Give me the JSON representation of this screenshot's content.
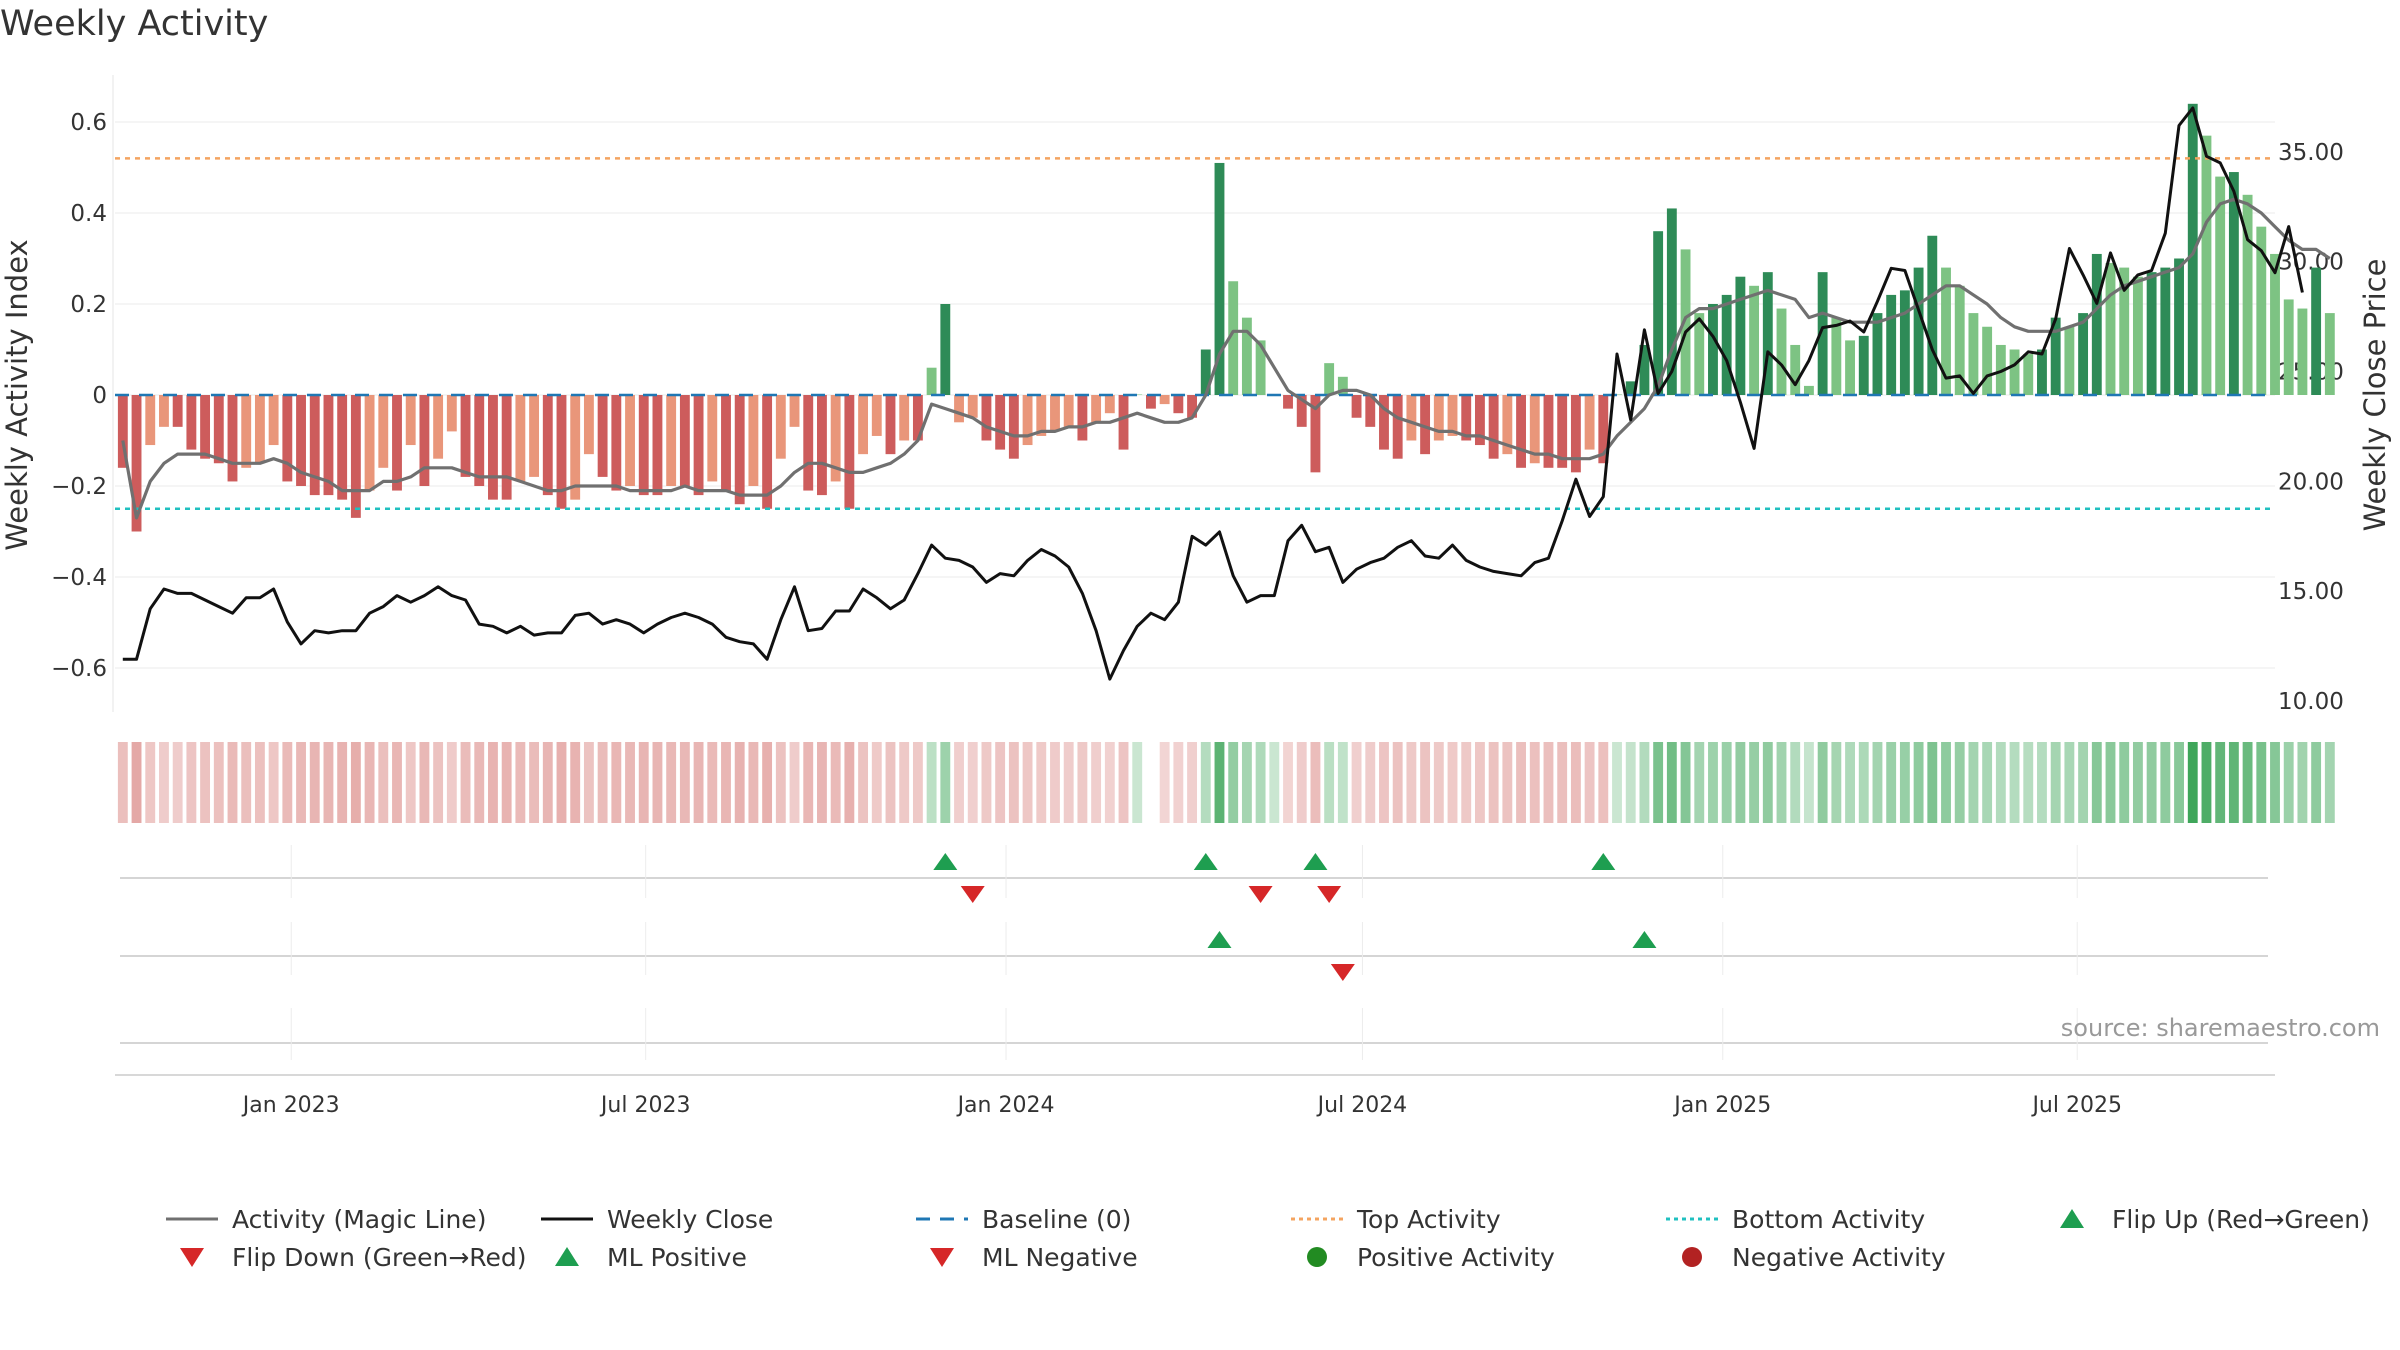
{
  "title": "Weekly Activity",
  "source": "source: sharemaestro.com",
  "colors": {
    "pos_dark": "#2e8b57",
    "pos_light": "#7dc383",
    "neg_dark": "#cd5c5c",
    "neg_light": "#e9967a",
    "magic_line": "#707070",
    "close_line": "#111111",
    "baseline": "#1f77b4",
    "top_line": "#f4a460",
    "bottom_line": "#20c0c0",
    "up_marker": "#1e9e50",
    "down_marker": "#d62728",
    "pos_dot": "#228b22",
    "neg_dot": "#b22222",
    "strip_green": "#3fa65a",
    "strip_red": "#d4736f"
  },
  "chart_data": {
    "type": "bar+line",
    "title": "Weekly Activity",
    "ylabel_left": "Weekly Activity Index",
    "ylabel_right": "Weekly Close Price",
    "y_left_ticks": [
      0.6,
      0.4,
      0.2,
      0,
      -0.2,
      -0.4,
      -0.6
    ],
    "y_left_tick_labels": [
      "0.6",
      "0.4",
      "0.2",
      "0",
      "−0.2",
      "−0.4",
      "−0.6"
    ],
    "y_left_range": [
      -0.7,
      0.7
    ],
    "y_right_ticks": [
      "35.00",
      "30.00",
      "25.00",
      "20.00",
      "15.00",
      "10.00"
    ],
    "y_right_range": [
      9.5,
      38.5
    ],
    "x_range": [
      "2022-10-03",
      "2025-10-10"
    ],
    "x_ticks": [
      {
        "label": "Jan 2023",
        "date": "2023-01-01"
      },
      {
        "label": "Jul 2023",
        "date": "2023-07-01"
      },
      {
        "label": "Jan 2024",
        "date": "2024-01-01"
      },
      {
        "label": "Jul 2024",
        "date": "2024-07-01"
      },
      {
        "label": "Jan 2025",
        "date": "2025-01-01"
      },
      {
        "label": "Jul 2025",
        "date": "2025-07-01"
      }
    ],
    "start_week": "2022-10-07",
    "top_activity": 0.52,
    "bottom_activity": -0.25,
    "activity": [
      -0.16,
      -0.3,
      -0.11,
      -0.07,
      -0.07,
      -0.12,
      -0.14,
      -0.15,
      -0.19,
      -0.16,
      -0.15,
      -0.11,
      -0.19,
      -0.2,
      -0.22,
      -0.22,
      -0.23,
      -0.27,
      -0.21,
      -0.16,
      -0.21,
      -0.11,
      -0.2,
      -0.14,
      -0.08,
      -0.18,
      -0.2,
      -0.23,
      -0.23,
      -0.19,
      -0.18,
      -0.22,
      -0.25,
      -0.23,
      -0.13,
      -0.18,
      -0.21,
      -0.2,
      -0.22,
      -0.22,
      -0.2,
      -0.2,
      -0.22,
      -0.19,
      -0.21,
      -0.24,
      -0.2,
      -0.25,
      -0.14,
      -0.07,
      -0.21,
      -0.22,
      -0.19,
      -0.25,
      -0.13,
      -0.09,
      -0.13,
      -0.1,
      -0.1,
      0.06,
      0.2,
      -0.06,
      -0.05,
      -0.1,
      -0.12,
      -0.14,
      -0.11,
      -0.09,
      -0.08,
      -0.07,
      -0.1,
      -0.06,
      -0.04,
      -0.12,
      0.0,
      -0.03,
      -0.02,
      -0.04,
      -0.05,
      0.1,
      0.51,
      0.25,
      0.17,
      0.12,
      0.0,
      -0.03,
      -0.07,
      -0.17,
      0.07,
      0.04,
      -0.05,
      -0.07,
      -0.12,
      -0.14,
      -0.1,
      -0.13,
      -0.1,
      -0.09,
      -0.1,
      -0.11,
      -0.14,
      -0.13,
      -0.16,
      -0.15,
      -0.16,
      -0.16,
      -0.17,
      -0.12,
      -0.15,
      0.0,
      0.03,
      0.11,
      0.36,
      0.41,
      0.32,
      0.18,
      0.2,
      0.22,
      0.26,
      0.24,
      0.27,
      0.19,
      0.11,
      0.02,
      0.27,
      0.17,
      0.12,
      0.13,
      0.18,
      0.22,
      0.23,
      0.28,
      0.35,
      0.28,
      0.24,
      0.18,
      0.15,
      0.11,
      0.1,
      0.09,
      0.1,
      0.17,
      0.15,
      0.18,
      0.31,
      0.29,
      0.28,
      0.26,
      0.27,
      0.28,
      0.3,
      0.64,
      0.57,
      0.48,
      0.49,
      0.44,
      0.37,
      0.31,
      0.21,
      0.19,
      0.28,
      0.18
    ],
    "magic_line": [
      -0.1,
      -0.27,
      -0.19,
      -0.15,
      -0.13,
      -0.13,
      -0.13,
      -0.14,
      -0.15,
      -0.15,
      -0.15,
      -0.14,
      -0.15,
      -0.17,
      -0.18,
      -0.19,
      -0.21,
      -0.21,
      -0.21,
      -0.19,
      -0.19,
      -0.18,
      -0.16,
      -0.16,
      -0.16,
      -0.17,
      -0.18,
      -0.18,
      -0.18,
      -0.19,
      -0.2,
      -0.21,
      -0.21,
      -0.2,
      -0.2,
      -0.2,
      -0.2,
      -0.21,
      -0.21,
      -0.21,
      -0.21,
      -0.2,
      -0.21,
      -0.21,
      -0.21,
      -0.22,
      -0.22,
      -0.22,
      -0.2,
      -0.17,
      -0.15,
      -0.15,
      -0.16,
      -0.17,
      -0.17,
      -0.16,
      -0.15,
      -0.13,
      -0.1,
      -0.02,
      -0.03,
      -0.04,
      -0.05,
      -0.07,
      -0.08,
      -0.09,
      -0.09,
      -0.08,
      -0.08,
      -0.07,
      -0.07,
      -0.06,
      -0.06,
      -0.05,
      -0.04,
      -0.05,
      -0.06,
      -0.06,
      -0.05,
      0.0,
      0.09,
      0.14,
      0.14,
      0.11,
      0.06,
      0.01,
      -0.01,
      -0.03,
      0.0,
      0.01,
      0.01,
      0.0,
      -0.03,
      -0.05,
      -0.06,
      -0.07,
      -0.08,
      -0.08,
      -0.09,
      -0.09,
      -0.1,
      -0.11,
      -0.12,
      -0.13,
      -0.13,
      -0.14,
      -0.14,
      -0.14,
      -0.13,
      -0.09,
      -0.06,
      -0.03,
      0.02,
      0.1,
      0.17,
      0.19,
      0.19,
      0.2,
      0.21,
      0.22,
      0.23,
      0.22,
      0.21,
      0.17,
      0.18,
      0.17,
      0.16,
      0.16,
      0.16,
      0.17,
      0.18,
      0.2,
      0.22,
      0.24,
      0.24,
      0.22,
      0.2,
      0.17,
      0.15,
      0.14,
      0.14,
      0.14,
      0.15,
      0.16,
      0.19,
      0.22,
      0.24,
      0.25,
      0.26,
      0.27,
      0.28,
      0.31,
      0.38,
      0.42,
      0.43,
      0.42,
      0.4,
      0.37,
      0.34,
      0.32,
      0.32,
      0.3
    ],
    "weekly_close": [
      11.9,
      11.9,
      14.2,
      15.1,
      14.9,
      14.9,
      14.6,
      14.3,
      14.0,
      14.7,
      14.7,
      15.1,
      13.6,
      12.6,
      13.2,
      13.1,
      13.2,
      13.2,
      14.0,
      14.3,
      14.8,
      14.5,
      14.8,
      15.2,
      14.8,
      14.6,
      13.5,
      13.4,
      13.1,
      13.4,
      13.0,
      13.1,
      13.1,
      13.9,
      14.0,
      13.5,
      13.7,
      13.5,
      13.1,
      13.5,
      13.8,
      14.0,
      13.8,
      13.5,
      12.9,
      12.7,
      12.6,
      11.9,
      13.7,
      15.2,
      13.2,
      13.3,
      14.1,
      14.1,
      15.1,
      14.7,
      14.2,
      14.6,
      15.8,
      17.1,
      16.5,
      16.4,
      16.1,
      15.4,
      15.8,
      15.7,
      16.4,
      16.9,
      16.6,
      16.1,
      14.9,
      13.2,
      11.0,
      12.3,
      13.4,
      14.0,
      13.7,
      14.5,
      17.5,
      17.1,
      17.7,
      15.7,
      14.5,
      14.8,
      14.8,
      17.3,
      18.0,
      16.8,
      17.0,
      15.4,
      16.0,
      16.3,
      16.5,
      17.0,
      17.3,
      16.6,
      16.5,
      17.1,
      16.4,
      16.1,
      15.9,
      15.8,
      15.7,
      16.3,
      16.5,
      18.2,
      20.1,
      18.4,
      19.3,
      25.8,
      22.8,
      26.9,
      24.0,
      25.0,
      26.8,
      27.4,
      26.6,
      25.5,
      23.6,
      21.5,
      25.9,
      25.3,
      24.4,
      25.5,
      27.0,
      27.1,
      27.3,
      26.8,
      28.2,
      29.7,
      29.6,
      27.8,
      26.0,
      24.7,
      24.8,
      24.0,
      24.8,
      25.0,
      25.3,
      25.9,
      25.8,
      27.4,
      30.6,
      29.4,
      28.1,
      30.4,
      28.7,
      29.4,
      29.6,
      31.3,
      36.2,
      37.0,
      34.8,
      34.5,
      33.2,
      31.0,
      30.5,
      29.5,
      31.6,
      28.6
    ],
    "flip_up": [
      60,
      79,
      87,
      108
    ],
    "flip_down": [
      62,
      83,
      88
    ],
    "ml_positive": [
      80,
      111
    ],
    "ml_negative": [
      89
    ],
    "missing_strip_weeks": [
      75
    ],
    "legend": [
      "Activity (Magic Line)",
      "Weekly Close",
      "Baseline (0)",
      "Top Activity",
      "Bottom Activity",
      "Flip Up (Red→Green)",
      "Flip Down (Green→Red)",
      "ML Positive",
      "ML Negative",
      "Positive Activity",
      "Negative Activity"
    ]
  }
}
